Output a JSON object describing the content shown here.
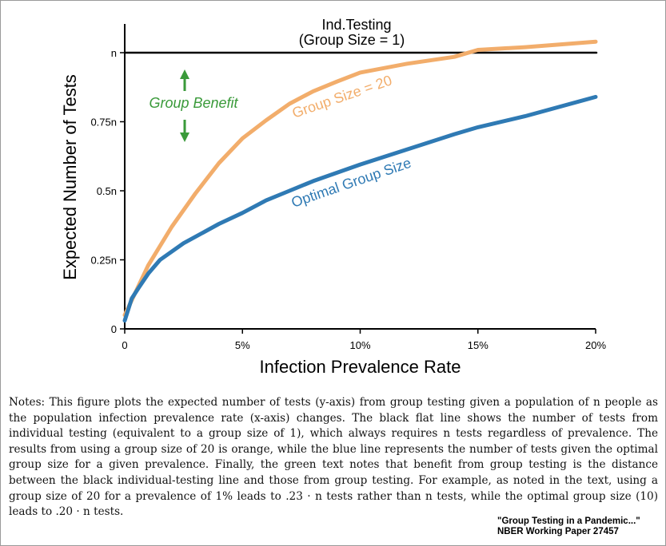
{
  "chart_data": {
    "type": "line",
    "xlabel": "Infection Prevalence Rate",
    "ylabel": "Expected Number of Tests",
    "xlim": [
      0,
      20
    ],
    "ylim": [
      0,
      1
    ],
    "x_ticks": [
      "0",
      "5%",
      "10%",
      "15%",
      "20%"
    ],
    "x_tick_values": [
      0,
      5,
      10,
      15,
      20
    ],
    "y_ticks": [
      "0",
      "0.25n",
      "0.5n",
      "0.75n",
      "n"
    ],
    "y_tick_values": [
      0,
      0.25,
      0.5,
      0.75,
      1
    ],
    "grid": false,
    "legend": "none",
    "series": [
      {
        "name": "Ind.Testing",
        "label": [
          "Ind.Testing",
          "(Group Size = 1)"
        ],
        "color": "#000000",
        "points": [
          [
            0,
            1
          ],
          [
            20,
            1
          ]
        ]
      },
      {
        "name": "Group Size = 20",
        "label": "Group Size = 20",
        "color": "#f2ad6b",
        "points": [
          [
            0,
            0.05
          ],
          [
            0.5,
            0.14
          ],
          [
            1,
            0.23
          ],
          [
            2,
            0.37
          ],
          [
            3,
            0.49
          ],
          [
            4,
            0.6
          ],
          [
            5,
            0.69
          ],
          [
            6,
            0.755
          ],
          [
            7,
            0.815
          ],
          [
            8,
            0.86
          ],
          [
            9,
            0.895
          ],
          [
            10,
            0.928
          ],
          [
            12,
            0.96
          ],
          [
            14,
            0.985
          ],
          [
            15,
            1.01
          ],
          [
            17,
            1.02
          ],
          [
            20,
            1.04
          ]
        ]
      },
      {
        "name": "Optimal Group Size",
        "label": "Optimal Group Size",
        "color": "#2f7ab4",
        "points": [
          [
            0,
            0.03
          ],
          [
            0.3,
            0.11
          ],
          [
            0.6,
            0.15
          ],
          [
            1,
            0.2
          ],
          [
            1.5,
            0.25
          ],
          [
            2.5,
            0.31
          ],
          [
            4,
            0.38
          ],
          [
            5,
            0.42
          ],
          [
            6,
            0.465
          ],
          [
            7,
            0.5
          ],
          [
            8,
            0.535
          ],
          [
            10,
            0.595
          ],
          [
            12,
            0.65
          ],
          [
            14,
            0.705
          ],
          [
            15,
            0.73
          ],
          [
            17,
            0.77
          ],
          [
            20,
            0.84
          ]
        ]
      }
    ],
    "annotations": [
      {
        "text": "Group Benefit",
        "color": "#3a9a3a"
      }
    ]
  },
  "notes": "Notes: This figure plots the expected number of tests (y-axis) from group testing given a population of n people as the population infection prevalence rate (x-axis) changes. The black flat line shows the number of tests from individual testing (equivalent to a group size of 1), which always requires n tests regardless of prevalence. The results from using a group size of 20 is orange, while the blue line represents the number of tests given the optimal group size for a given prevalence. Finally, the green text notes that benefit from group testing is the distance between the black individual-testing line and those from group testing. For example, as noted in the text, using a group size of 20 for a prevalence of 1% leads to .23 · n tests rather than n tests, while the optimal group size (10) leads to .20 · n tests.",
  "source": {
    "line1": "\"Group Testing in a Pandemic...\"",
    "line2": "NBER Working Paper 27457"
  }
}
